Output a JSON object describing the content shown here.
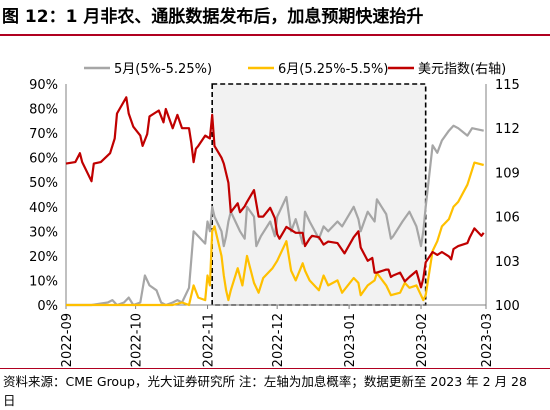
{
  "title": "图 12：1 月非农、通胀数据发布后，加息预期快速抬升",
  "source": "资料来源：CME Group，光大证券研究所  注：左轴为加息概率；数据更新至 2023 年 2 月 28 日",
  "colors": {
    "s5": "#a6a6a6",
    "s6": "#ffc000",
    "usd": "#c00000",
    "rule": "#b00020",
    "shade": "#f2f2f2"
  },
  "chart_data": {
    "type": "line",
    "x_tick_labels": [
      "2022-09",
      "2022-10",
      "2022-11",
      "2022-12",
      "2023-01",
      "2023-02",
      "2023-03"
    ],
    "x_range": [
      "2022-09-01",
      "2023-03-01"
    ],
    "left_axis": {
      "ylim": [
        0,
        90
      ],
      "tick_labels": [
        "0%",
        "10%",
        "20%",
        "30%",
        "40%",
        "50%",
        "60%",
        "70%",
        "80%",
        "90%"
      ]
    },
    "right_axis": {
      "ylim": [
        100,
        115
      ],
      "tick_labels": [
        "100",
        "103",
        "106",
        "109",
        "112",
        "115"
      ]
    },
    "legend": {
      "placement": "top"
    },
    "highlight_box": {
      "start": "2022-11-03",
      "end": "2023-02-03"
    },
    "series": [
      {
        "name": "5月(5%-5.25%)",
        "axis": "left",
        "points": [
          [
            "2022-09-01",
            0
          ],
          [
            "2022-09-12",
            0
          ],
          [
            "2022-09-19",
            1
          ],
          [
            "2022-09-21",
            2
          ],
          [
            "2022-09-23",
            0
          ],
          [
            "2022-09-26",
            1
          ],
          [
            "2022-09-28",
            3
          ],
          [
            "2022-09-30",
            0
          ],
          [
            "2022-10-03",
            1
          ],
          [
            "2022-10-05",
            12
          ],
          [
            "2022-10-07",
            8
          ],
          [
            "2022-10-10",
            6
          ],
          [
            "2022-10-12",
            1
          ],
          [
            "2022-10-14",
            0
          ],
          [
            "2022-10-17",
            1
          ],
          [
            "2022-10-19",
            2
          ],
          [
            "2022-10-21",
            1
          ],
          [
            "2022-10-24",
            7
          ],
          [
            "2022-10-26",
            30
          ],
          [
            "2022-10-28",
            28
          ],
          [
            "2022-10-31",
            25
          ],
          [
            "2022-11-01",
            34
          ],
          [
            "2022-11-02",
            30
          ],
          [
            "2022-11-03",
            40
          ],
          [
            "2022-11-04",
            36
          ],
          [
            "2022-11-07",
            30
          ],
          [
            "2022-11-08",
            24
          ],
          [
            "2022-11-09",
            28
          ],
          [
            "2022-11-10",
            34
          ],
          [
            "2022-11-11",
            38
          ],
          [
            "2022-11-14",
            32
          ],
          [
            "2022-11-15",
            30
          ],
          [
            "2022-11-17",
            27
          ],
          [
            "2022-11-18",
            40
          ],
          [
            "2022-11-21",
            36
          ],
          [
            "2022-11-22",
            24
          ],
          [
            "2022-11-24",
            28
          ],
          [
            "2022-11-28",
            34
          ],
          [
            "2022-11-30",
            28
          ],
          [
            "2022-12-01",
            36
          ],
          [
            "2022-12-05",
            44
          ],
          [
            "2022-12-07",
            30
          ],
          [
            "2022-12-09",
            35
          ],
          [
            "2022-12-12",
            25
          ],
          [
            "2022-12-13",
            38
          ],
          [
            "2022-12-15",
            34
          ],
          [
            "2022-12-19",
            27
          ],
          [
            "2022-12-21",
            32
          ],
          [
            "2022-12-23",
            30
          ],
          [
            "2022-12-27",
            34
          ],
          [
            "2022-12-29",
            32
          ],
          [
            "2023-01-03",
            40
          ],
          [
            "2023-01-05",
            35
          ],
          [
            "2023-01-06",
            30
          ],
          [
            "2023-01-09",
            38
          ],
          [
            "2023-01-12",
            34
          ],
          [
            "2023-01-13",
            43
          ],
          [
            "2023-01-17",
            37
          ],
          [
            "2023-01-19",
            27
          ],
          [
            "2023-01-20",
            28
          ],
          [
            "2023-01-24",
            34
          ],
          [
            "2023-01-27",
            38
          ],
          [
            "2023-01-30",
            32
          ],
          [
            "2023-02-01",
            24
          ],
          [
            "2023-02-02",
            30
          ],
          [
            "2023-02-03",
            40
          ],
          [
            "2023-02-06",
            65
          ],
          [
            "2023-02-08",
            62
          ],
          [
            "2023-02-10",
            67
          ],
          [
            "2023-02-13",
            71
          ],
          [
            "2023-02-15",
            73
          ],
          [
            "2023-02-17",
            72
          ],
          [
            "2023-02-21",
            69
          ],
          [
            "2023-02-23",
            72
          ],
          [
            "2023-02-28",
            71
          ]
        ]
      },
      {
        "name": "6月(5.25%-5.5%)",
        "axis": "left",
        "points": [
          [
            "2022-09-01",
            0
          ],
          [
            "2022-10-17",
            0
          ],
          [
            "2022-10-21",
            1
          ],
          [
            "2022-10-24",
            0
          ],
          [
            "2022-10-26",
            8
          ],
          [
            "2022-10-28",
            3
          ],
          [
            "2022-10-31",
            2
          ],
          [
            "2022-11-01",
            12
          ],
          [
            "2022-11-02",
            8
          ],
          [
            "2022-11-03",
            30
          ],
          [
            "2022-11-04",
            32
          ],
          [
            "2022-11-07",
            20
          ],
          [
            "2022-11-08",
            12
          ],
          [
            "2022-11-09",
            6
          ],
          [
            "2022-11-10",
            2
          ],
          [
            "2022-11-11",
            6
          ],
          [
            "2022-11-14",
            15
          ],
          [
            "2022-11-16",
            8
          ],
          [
            "2022-11-18",
            20
          ],
          [
            "2022-11-21",
            9
          ],
          [
            "2022-11-23",
            5
          ],
          [
            "2022-11-25",
            11
          ],
          [
            "2022-11-29",
            15
          ],
          [
            "2022-12-01",
            18
          ],
          [
            "2022-12-05",
            26
          ],
          [
            "2022-12-07",
            14
          ],
          [
            "2022-12-09",
            10
          ],
          [
            "2022-12-12",
            17
          ],
          [
            "2022-12-13",
            14
          ],
          [
            "2022-12-15",
            10
          ],
          [
            "2022-12-19",
            6
          ],
          [
            "2022-12-21",
            12
          ],
          [
            "2022-12-23",
            8
          ],
          [
            "2022-12-27",
            10
          ],
          [
            "2022-12-29",
            5
          ],
          [
            "2023-01-03",
            11
          ],
          [
            "2023-01-05",
            9
          ],
          [
            "2023-01-06",
            4
          ],
          [
            "2023-01-09",
            8
          ],
          [
            "2023-01-12",
            10
          ],
          [
            "2023-01-13",
            13
          ],
          [
            "2023-01-17",
            8
          ],
          [
            "2023-01-19",
            4
          ],
          [
            "2023-01-23",
            5
          ],
          [
            "2023-01-25",
            9
          ],
          [
            "2023-01-27",
            7
          ],
          [
            "2023-01-30",
            8
          ],
          [
            "2023-02-01",
            4
          ],
          [
            "2023-02-02",
            2
          ],
          [
            "2023-02-03",
            4
          ],
          [
            "2023-02-06",
            22
          ],
          [
            "2023-02-08",
            26
          ],
          [
            "2023-02-10",
            32
          ],
          [
            "2023-02-13",
            35
          ],
          [
            "2023-02-15",
            40
          ],
          [
            "2023-02-17",
            42
          ],
          [
            "2023-02-21",
            49
          ],
          [
            "2023-02-23",
            55
          ],
          [
            "2023-02-24",
            58
          ],
          [
            "2023-02-28",
            57
          ]
        ]
      },
      {
        "name": "美元指数(右轴)",
        "axis": "right",
        "points": [
          [
            "2022-09-01",
            109.6
          ],
          [
            "2022-09-05",
            109.7
          ],
          [
            "2022-09-07",
            110.3
          ],
          [
            "2022-09-08",
            109.7
          ],
          [
            "2022-09-12",
            108.4
          ],
          [
            "2022-09-13",
            109.6
          ],
          [
            "2022-09-16",
            109.7
          ],
          [
            "2022-09-20",
            110.3
          ],
          [
            "2022-09-22",
            111.3
          ],
          [
            "2022-09-23",
            113.0
          ],
          [
            "2022-09-27",
            114.1
          ],
          [
            "2022-09-28",
            113.0
          ],
          [
            "2022-09-30",
            112.1
          ],
          [
            "2022-10-03",
            111.5
          ],
          [
            "2022-10-04",
            110.8
          ],
          [
            "2022-10-06",
            111.6
          ],
          [
            "2022-10-07",
            112.8
          ],
          [
            "2022-10-11",
            113.2
          ],
          [
            "2022-10-13",
            112.4
          ],
          [
            "2022-10-14",
            113.3
          ],
          [
            "2022-10-17",
            112.0
          ],
          [
            "2022-10-19",
            112.9
          ],
          [
            "2022-10-21",
            112.0
          ],
          [
            "2022-10-24",
            112.0
          ],
          [
            "2022-10-25",
            111.0
          ],
          [
            "2022-10-26",
            109.7
          ],
          [
            "2022-10-27",
            110.6
          ],
          [
            "2022-10-28",
            110.8
          ],
          [
            "2022-10-31",
            111.5
          ],
          [
            "2022-11-01",
            111.4
          ],
          [
            "2022-11-02",
            111.3
          ],
          [
            "2022-11-03",
            112.9
          ],
          [
            "2022-11-04",
            110.8
          ],
          [
            "2022-11-07",
            110.0
          ],
          [
            "2022-11-08",
            109.6
          ],
          [
            "2022-11-10",
            108.3
          ],
          [
            "2022-11-11",
            106.3
          ],
          [
            "2022-11-14",
            106.9
          ],
          [
            "2022-11-15",
            106.3
          ],
          [
            "2022-11-17",
            106.7
          ],
          [
            "2022-11-18",
            107.0
          ],
          [
            "2022-11-21",
            107.8
          ],
          [
            "2022-11-23",
            106.0
          ],
          [
            "2022-11-25",
            106.0
          ],
          [
            "2022-11-28",
            106.6
          ],
          [
            "2022-11-30",
            105.9
          ],
          [
            "2022-12-01",
            104.8
          ],
          [
            "2022-12-02",
            104.5
          ],
          [
            "2022-12-05",
            105.3
          ],
          [
            "2022-12-07",
            105.1
          ],
          [
            "2022-12-09",
            104.9
          ],
          [
            "2022-12-12",
            104.9
          ],
          [
            "2022-12-13",
            104.0
          ],
          [
            "2022-12-15",
            104.5
          ],
          [
            "2022-12-16",
            104.7
          ],
          [
            "2022-12-19",
            104.6
          ],
          [
            "2022-12-21",
            104.1
          ],
          [
            "2022-12-23",
            104.3
          ],
          [
            "2022-12-27",
            104.2
          ],
          [
            "2022-12-30",
            103.5
          ],
          [
            "2023-01-03",
            104.6
          ],
          [
            "2023-01-05",
            105.0
          ],
          [
            "2023-01-06",
            103.9
          ],
          [
            "2023-01-09",
            103.0
          ],
          [
            "2023-01-11",
            103.2
          ],
          [
            "2023-01-12",
            102.2
          ],
          [
            "2023-01-13",
            102.2
          ],
          [
            "2023-01-17",
            102.4
          ],
          [
            "2023-01-18",
            102.4
          ],
          [
            "2023-01-19",
            101.9
          ],
          [
            "2023-01-20",
            102.0
          ],
          [
            "2023-01-23",
            102.2
          ],
          [
            "2023-01-25",
            101.6
          ],
          [
            "2023-01-27",
            101.9
          ],
          [
            "2023-01-30",
            102.3
          ],
          [
            "2023-02-01",
            101.2
          ],
          [
            "2023-02-02",
            101.8
          ],
          [
            "2023-02-03",
            102.9
          ],
          [
            "2023-02-06",
            103.6
          ],
          [
            "2023-02-08",
            103.4
          ],
          [
            "2023-02-10",
            103.6
          ],
          [
            "2023-02-13",
            103.3
          ],
          [
            "2023-02-14",
            103.1
          ],
          [
            "2023-02-15",
            103.8
          ],
          [
            "2023-02-17",
            104.0
          ],
          [
            "2023-02-21",
            104.2
          ],
          [
            "2023-02-22",
            104.6
          ],
          [
            "2023-02-24",
            105.2
          ],
          [
            "2023-02-27",
            104.7
          ],
          [
            "2023-02-28",
            104.9
          ]
        ]
      }
    ]
  }
}
